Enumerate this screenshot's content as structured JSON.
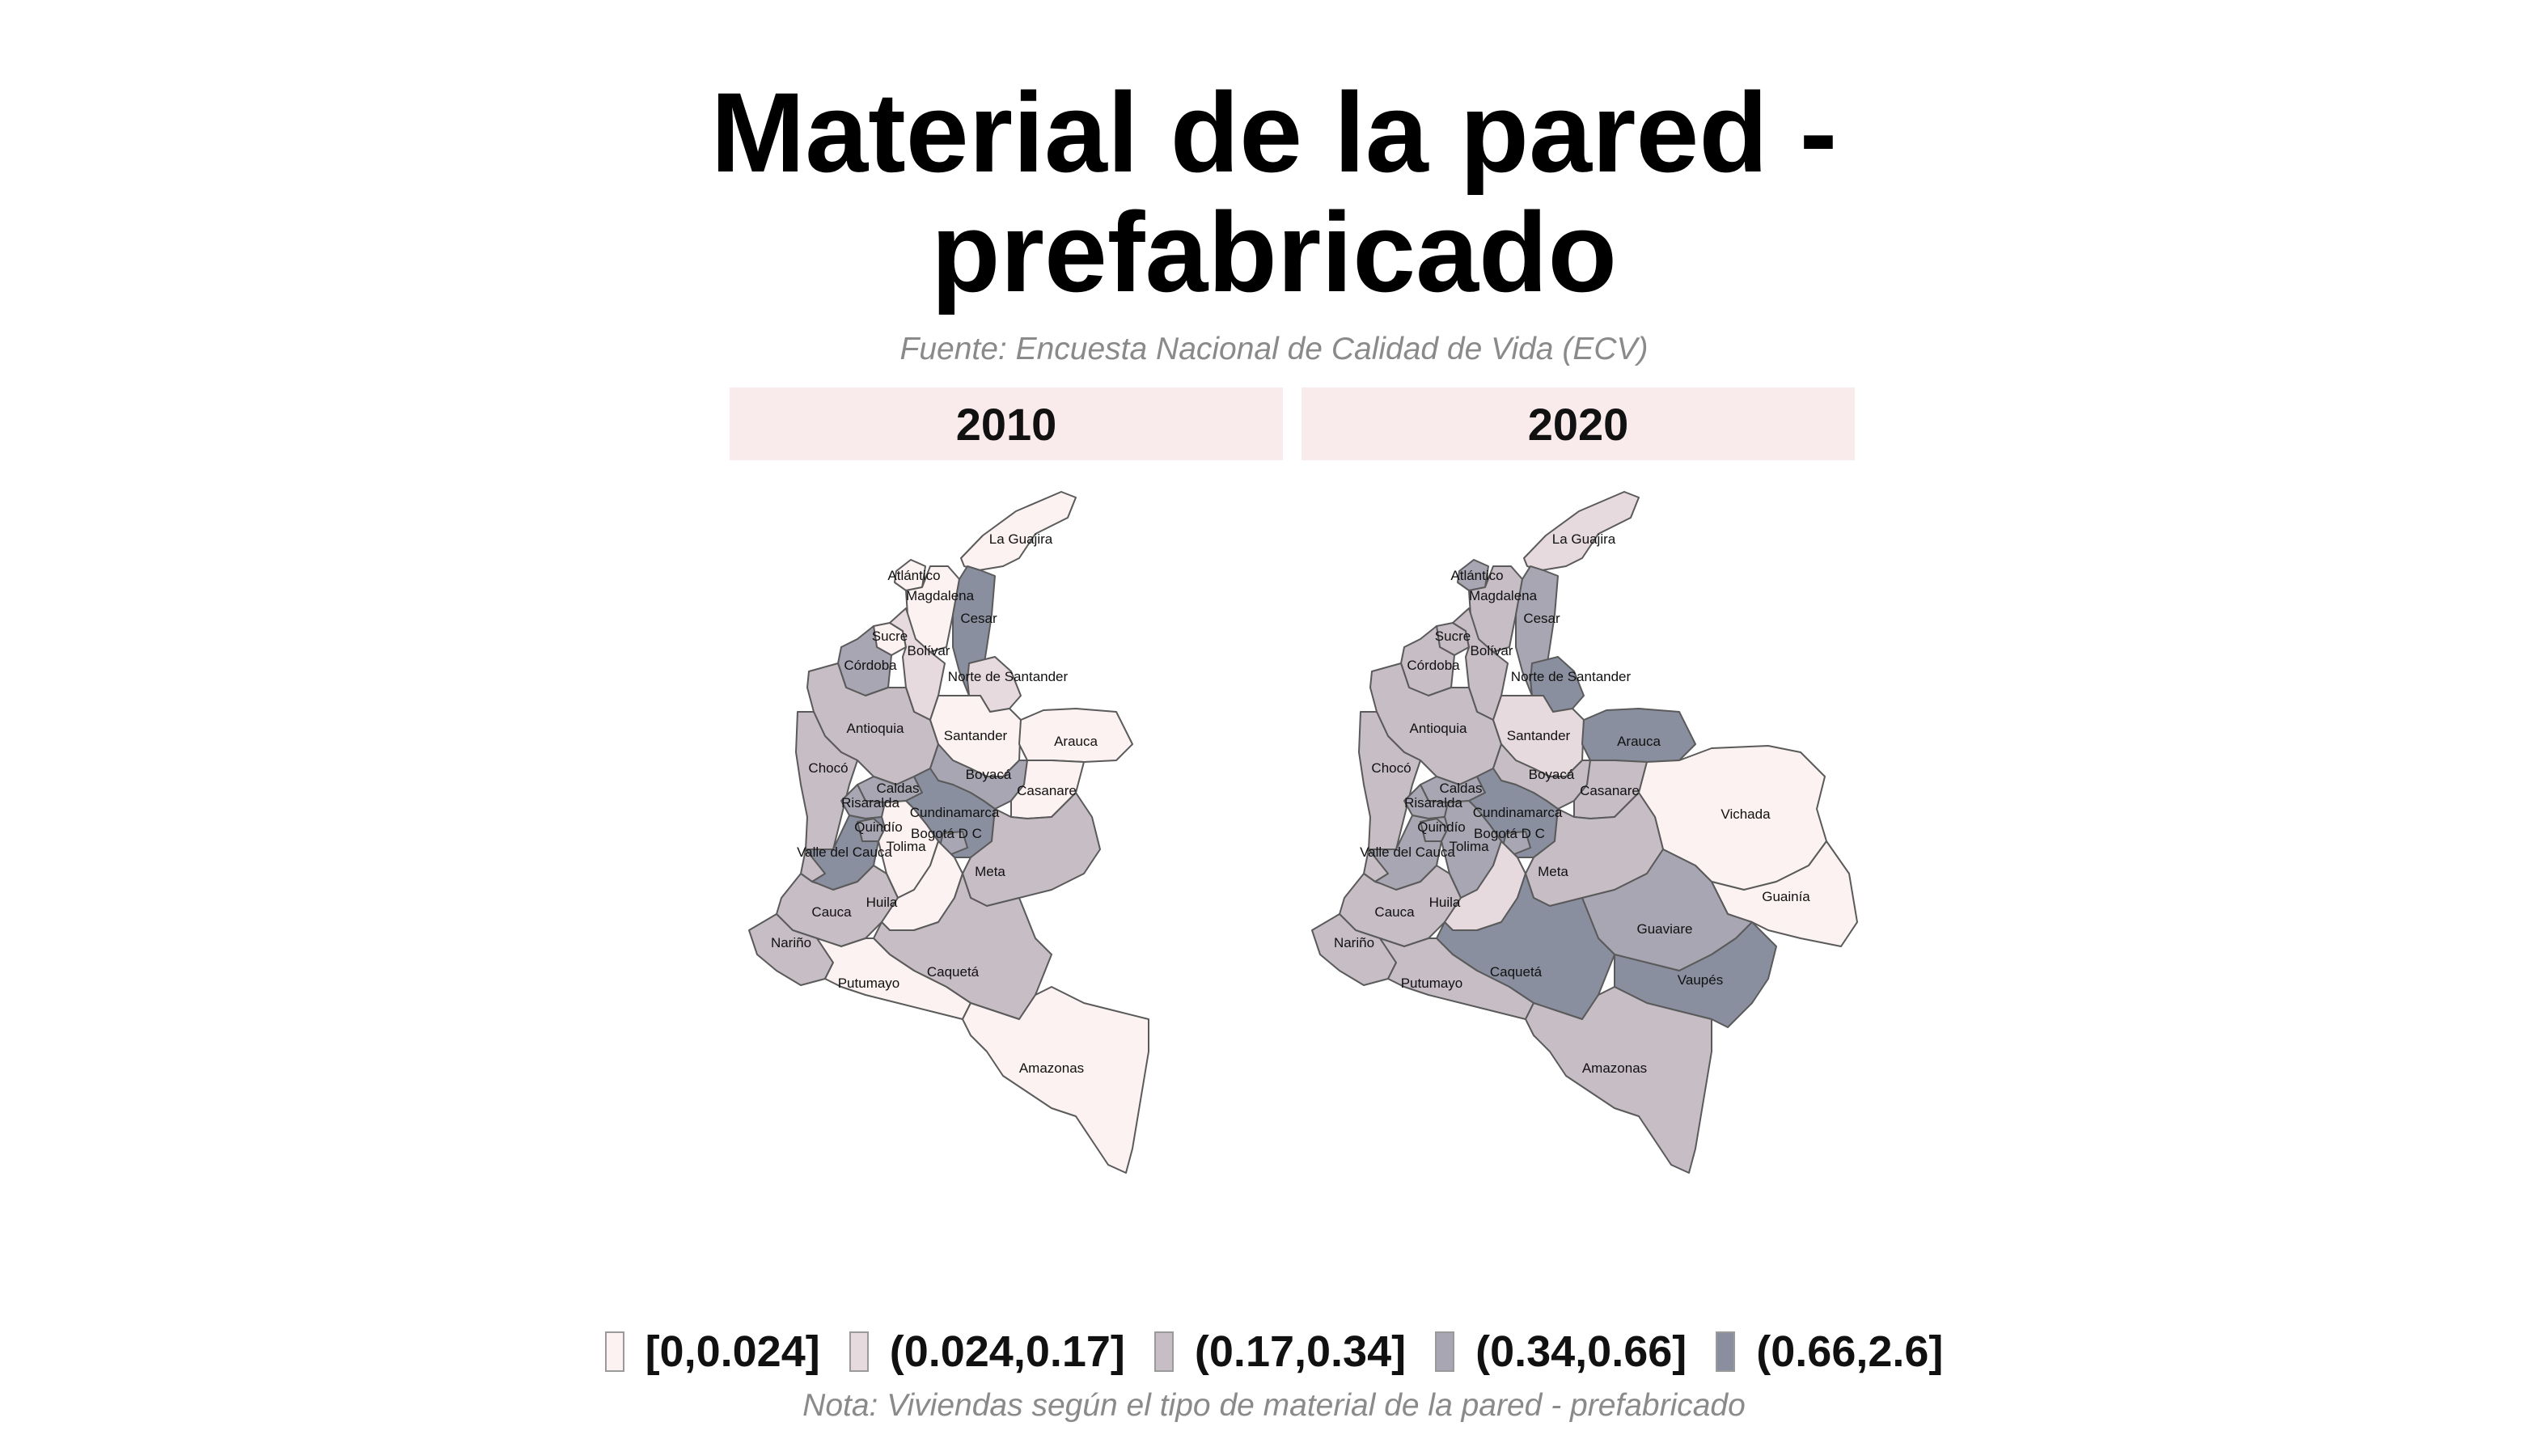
{
  "title_line1": "Material de la pared -",
  "title_line2": "prefabricado",
  "subtitle": "Fuente: Encuesta Nacional de Calidad de Vida (ECV)",
  "note": "Nota: Viviendas según el tipo de material de la pared - prefabricado",
  "panels": [
    {
      "year": "2010"
    },
    {
      "year": "2020"
    }
  ],
  "legend": [
    {
      "label": "[0,0.024]",
      "color": "#fcf2f2"
    },
    {
      "label": "(0.024,0.17]",
      "color": "#e6dade"
    },
    {
      "label": "(0.17,0.34]",
      "color": "#c7bdc5"
    },
    {
      "label": "(0.34,0.66]",
      "color": "#a7a6b2"
    },
    {
      "label": "(0.66,2.6]",
      "color": "#8a8f9f"
    }
  ],
  "departments": [
    {
      "name": "La Guajira",
      "class_2010": 0,
      "class_2020": 1
    },
    {
      "name": "Atlántico",
      "class_2010": 0,
      "class_2020": 3
    },
    {
      "name": "Magdalena",
      "class_2010": 0,
      "class_2020": 2
    },
    {
      "name": "Cesar",
      "class_2010": 4,
      "class_2020": 3
    },
    {
      "name": "Sucre",
      "class_2010": 0,
      "class_2020": 2
    },
    {
      "name": "Bolívar",
      "class_2010": 1,
      "class_2020": 2
    },
    {
      "name": "Córdoba",
      "class_2010": 3,
      "class_2020": 2
    },
    {
      "name": "Norte de Santander",
      "class_2010": 1,
      "class_2020": 4
    },
    {
      "name": "Antioquia",
      "class_2010": 2,
      "class_2020": 2
    },
    {
      "name": "Santander",
      "class_2010": 0,
      "class_2020": 1
    },
    {
      "name": "Arauca",
      "class_2010": 0,
      "class_2020": 4
    },
    {
      "name": "Chocó",
      "class_2010": 2,
      "class_2020": 2
    },
    {
      "name": "Boyacá",
      "class_2010": 3,
      "class_2020": 2
    },
    {
      "name": "Casanare",
      "class_2010": 0,
      "class_2020": 2
    },
    {
      "name": "Caldas",
      "class_2010": 3,
      "class_2020": 3
    },
    {
      "name": "Risaralda",
      "class_2010": 3,
      "class_2020": 3
    },
    {
      "name": "Cundinamarca",
      "class_2010": 4,
      "class_2020": 4
    },
    {
      "name": "Quindío",
      "class_2010": 3,
      "class_2020": 3
    },
    {
      "name": "Bogotá D C",
      "class_2010": 3,
      "class_2020": 3
    },
    {
      "name": "Tolima",
      "class_2010": 0,
      "class_2020": 3
    },
    {
      "name": "Valle del Cauca",
      "class_2010": 4,
      "class_2020": 3
    },
    {
      "name": "Vichada",
      "class_2010": null,
      "class_2020": 0
    },
    {
      "name": "Meta",
      "class_2010": 2,
      "class_2020": 2
    },
    {
      "name": "Guainía",
      "class_2010": null,
      "class_2020": 0
    },
    {
      "name": "Cauca",
      "class_2010": 2,
      "class_2020": 2
    },
    {
      "name": "Huila",
      "class_2010": 0,
      "class_2020": 1
    },
    {
      "name": "Guaviare",
      "class_2010": null,
      "class_2020": 3
    },
    {
      "name": "Nariño",
      "class_2010": 2,
      "class_2020": 2
    },
    {
      "name": "Caquetá",
      "class_2010": 2,
      "class_2020": 4
    },
    {
      "name": "Vaupés",
      "class_2010": null,
      "class_2020": 4
    },
    {
      "name": "Putumayo",
      "class_2010": 0,
      "class_2020": 2
    },
    {
      "name": "Amazonas",
      "class_2010": 0,
      "class_2020": 2
    }
  ]
}
